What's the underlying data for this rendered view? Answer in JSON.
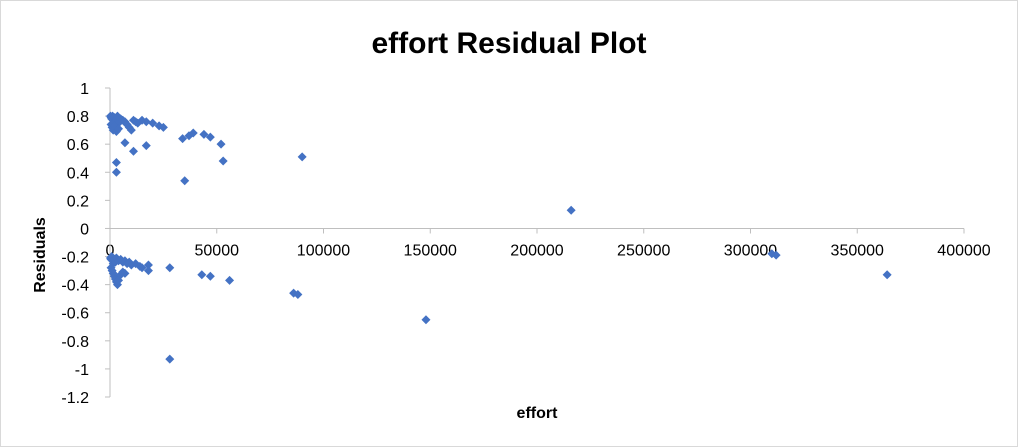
{
  "chart_data": {
    "type": "scatter",
    "title": "effort  Residual Plot",
    "xlabel": "effort",
    "ylabel": "Residuals",
    "xlim": [
      0,
      400000
    ],
    "ylim": [
      -1.2,
      1
    ],
    "x_ticks": [
      0,
      50000,
      100000,
      150000,
      200000,
      250000,
      300000,
      350000,
      400000
    ],
    "y_ticks": [
      1,
      0.8,
      0.6,
      0.4,
      0.2,
      0,
      -0.2,
      -0.4,
      -0.6,
      -0.8,
      -1,
      -1.2
    ],
    "y_tick_labels": [
      "1",
      "0.8",
      "0.6",
      "0.4",
      "0.2",
      "0",
      "-0.2",
      "-0.4",
      "-0.6",
      "-0.8",
      "-1",
      "-1.2"
    ],
    "grid": false,
    "legend": "none",
    "marker": "diamond",
    "color": "#4472c4",
    "series": [
      {
        "points": [
          [
            200,
            0.8
          ],
          [
            500,
            0.79
          ],
          [
            800,
            0.78
          ],
          [
            1200,
            0.8
          ],
          [
            1500,
            0.77
          ],
          [
            2000,
            0.79
          ],
          [
            2500,
            0.76
          ],
          [
            3000,
            0.78
          ],
          [
            3500,
            0.8
          ],
          [
            4000,
            0.75
          ],
          [
            500,
            0.74
          ],
          [
            1000,
            0.72
          ],
          [
            1500,
            0.7
          ],
          [
            2000,
            0.73
          ],
          [
            3000,
            0.69
          ],
          [
            4000,
            0.71
          ],
          [
            5000,
            0.78
          ],
          [
            6000,
            0.77
          ],
          [
            7000,
            0.76
          ],
          [
            8000,
            0.74
          ],
          [
            9000,
            0.72
          ],
          [
            10000,
            0.7
          ],
          [
            11000,
            0.77
          ],
          [
            12000,
            0.76
          ],
          [
            13000,
            0.75
          ],
          [
            15000,
            0.77
          ],
          [
            17000,
            0.76
          ],
          [
            20000,
            0.75
          ],
          [
            23000,
            0.73
          ],
          [
            25000,
            0.72
          ],
          [
            7000,
            0.61
          ],
          [
            11000,
            0.55
          ],
          [
            17000,
            0.59
          ],
          [
            3000,
            0.47
          ],
          [
            3000,
            0.4
          ],
          [
            34000,
            0.64
          ],
          [
            37000,
            0.66
          ],
          [
            39000,
            0.68
          ],
          [
            44000,
            0.67
          ],
          [
            47000,
            0.65
          ],
          [
            52000,
            0.6
          ],
          [
            53000,
            0.48
          ],
          [
            35000,
            0.34
          ],
          [
            90000,
            0.51
          ],
          [
            216000,
            0.13
          ],
          [
            200,
            -0.21
          ],
          [
            500,
            -0.22
          ],
          [
            800,
            -0.2
          ],
          [
            1200,
            -0.23
          ],
          [
            1500,
            -0.25
          ],
          [
            2000,
            -0.22
          ],
          [
            2500,
            -0.24
          ],
          [
            3000,
            -0.21
          ],
          [
            4000,
            -0.23
          ],
          [
            5000,
            -0.22
          ],
          [
            6000,
            -0.24
          ],
          [
            7000,
            -0.23
          ],
          [
            8000,
            -0.25
          ],
          [
            9000,
            -0.24
          ],
          [
            10000,
            -0.26
          ],
          [
            12000,
            -0.25
          ],
          [
            14000,
            -0.27
          ],
          [
            15000,
            -0.28
          ],
          [
            18000,
            -0.26
          ],
          [
            500,
            -0.28
          ],
          [
            1000,
            -0.3
          ],
          [
            1500,
            -0.32
          ],
          [
            2000,
            -0.34
          ],
          [
            2500,
            -0.36
          ],
          [
            3000,
            -0.38
          ],
          [
            3500,
            -0.4
          ],
          [
            4000,
            -0.37
          ],
          [
            5000,
            -0.33
          ],
          [
            6000,
            -0.31
          ],
          [
            7000,
            -0.32
          ],
          [
            18000,
            -0.3
          ],
          [
            28000,
            -0.28
          ],
          [
            43000,
            -0.33
          ],
          [
            47000,
            -0.34
          ],
          [
            56000,
            -0.37
          ],
          [
            86000,
            -0.46
          ],
          [
            88000,
            -0.47
          ],
          [
            148000,
            -0.65
          ],
          [
            28000,
            -0.93
          ],
          [
            310000,
            -0.18
          ],
          [
            312000,
            -0.19
          ],
          [
            364000,
            -0.33
          ]
        ]
      }
    ]
  }
}
